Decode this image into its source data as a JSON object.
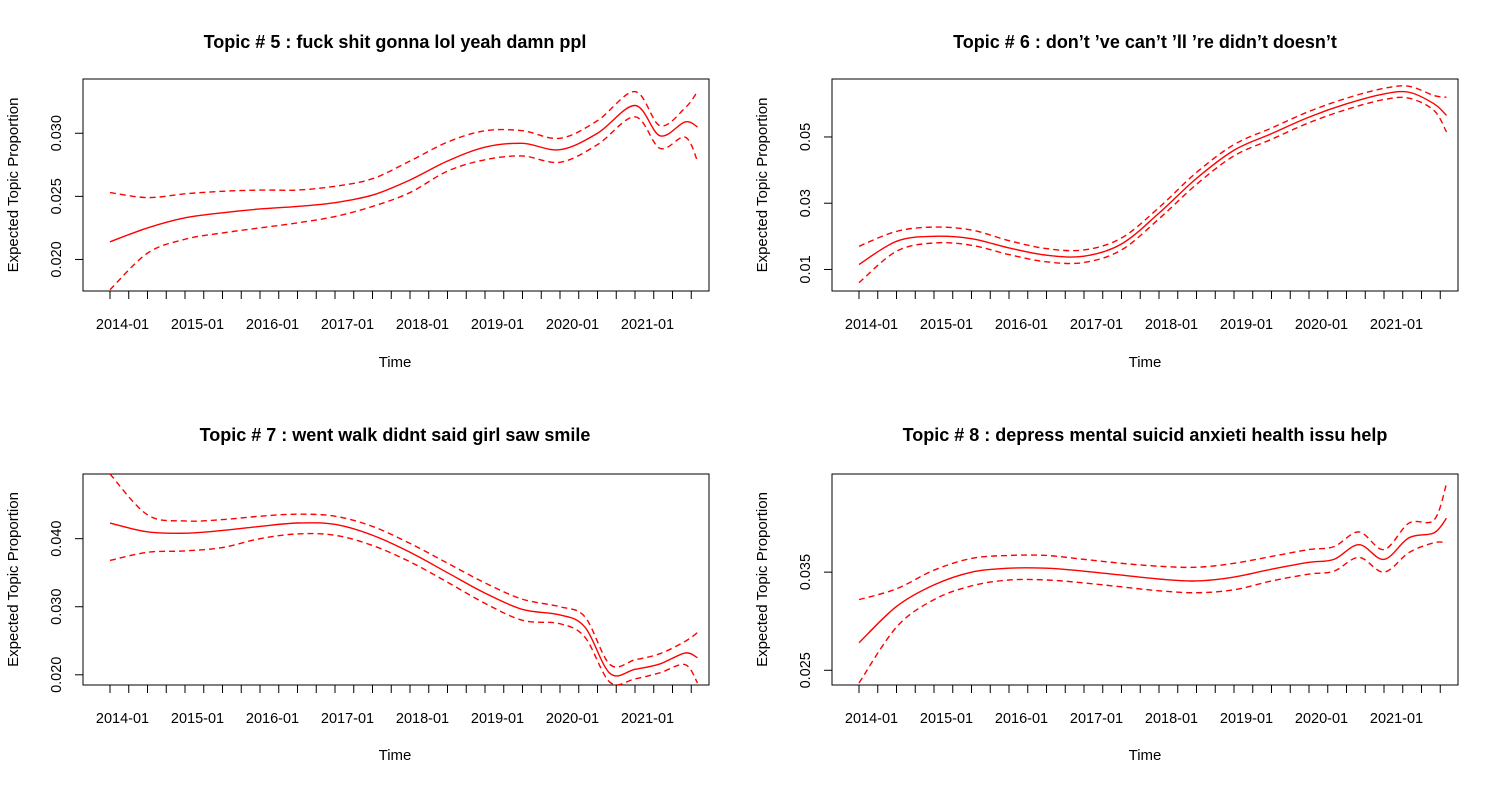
{
  "chart_data": [
    {
      "type": "line",
      "title": "Topic # 5 :  fuck shit gonna lol yeah damn ppl",
      "xlabel": "Time",
      "ylabel": "Expected Topic Proportion",
      "x_ticks": [
        "2014-01",
        "2015-01",
        "2016-01",
        "2017-01",
        "2018-01",
        "2019-01",
        "2020-01",
        "2021-01"
      ],
      "y_ticks": [
        "0.020",
        "0.025",
        "0.030"
      ],
      "ylim": [
        0.0175,
        0.0343
      ],
      "x": [
        "2013-11",
        "2014-05",
        "2014-11",
        "2015-05",
        "2015-11",
        "2016-05",
        "2016-11",
        "2017-05",
        "2017-11",
        "2018-05",
        "2018-11",
        "2019-05",
        "2019-11",
        "2020-05",
        "2020-11",
        "2021-03",
        "2021-07",
        "2021-09"
      ],
      "series": [
        {
          "values": [
            0.0214,
            0.0225,
            0.0233,
            0.0237,
            0.024,
            0.0242,
            0.0245,
            0.0251,
            0.0263,
            0.0278,
            0.0289,
            0.0292,
            0.0287,
            0.03,
            0.0322,
            0.0298,
            0.0309,
            0.0305
          ]
        },
        {
          "values": [
            0.0253,
            0.0249,
            0.0252,
            0.0254,
            0.0255,
            0.0255,
            0.0258,
            0.0264,
            0.0278,
            0.0293,
            0.0302,
            0.0302,
            0.0296,
            0.031,
            0.0333,
            0.0306,
            0.032,
            0.0333
          ]
        },
        {
          "values": [
            0.0176,
            0.0205,
            0.0216,
            0.0221,
            0.0225,
            0.0229,
            0.0234,
            0.0242,
            0.0253,
            0.027,
            0.0279,
            0.0282,
            0.0277,
            0.0291,
            0.0313,
            0.0288,
            0.0297,
            0.0278
          ]
        }
      ],
      "line_color": "#ff0000"
    },
    {
      "type": "line",
      "title": "Topic # 6 :  don’t ’ve can’t ’ll ’re didn’t doesn’t",
      "xlabel": "Time",
      "ylabel": "Expected Topic Proportion",
      "x_ticks": [
        "2014-01",
        "2015-01",
        "2016-01",
        "2017-01",
        "2018-01",
        "2019-01",
        "2020-01",
        "2021-01"
      ],
      "y_ticks": [
        "0.01",
        "0.03",
        "0.05"
      ],
      "ylim": [
        0.0035,
        0.0675
      ],
      "x": [
        "2013-11",
        "2014-05",
        "2014-11",
        "2015-05",
        "2015-11",
        "2016-05",
        "2016-11",
        "2017-05",
        "2017-11",
        "2018-05",
        "2018-11",
        "2019-05",
        "2019-11",
        "2020-05",
        "2020-11",
        "2021-03",
        "2021-07",
        "2021-09"
      ],
      "series": [
        {
          "values": [
            0.0115,
            0.0185,
            0.02,
            0.0193,
            0.0165,
            0.0143,
            0.014,
            0.0177,
            0.027,
            0.0375,
            0.046,
            0.051,
            0.056,
            0.06,
            0.063,
            0.0635,
            0.06,
            0.0565
          ]
        },
        {
          "values": [
            0.017,
            0.0215,
            0.0228,
            0.0219,
            0.0187,
            0.0163,
            0.0159,
            0.0195,
            0.0287,
            0.0393,
            0.0477,
            0.0527,
            0.0577,
            0.0617,
            0.0647,
            0.0653,
            0.0625,
            0.062
          ]
        },
        {
          "values": [
            0.006,
            0.0155,
            0.018,
            0.0173,
            0.0145,
            0.0123,
            0.0121,
            0.0159,
            0.0253,
            0.0357,
            0.0443,
            0.0493,
            0.0543,
            0.0583,
            0.0613,
            0.0617,
            0.058,
            0.0515
          ]
        }
      ],
      "line_color": "#ff0000"
    },
    {
      "type": "line",
      "title": "Topic # 7 :  went walk didnt said girl saw smile",
      "xlabel": "Time",
      "ylabel": "Expected Topic Proportion",
      "x_ticks": [
        "2014-01",
        "2015-01",
        "2016-01",
        "2017-01",
        "2018-01",
        "2019-01",
        "2020-01",
        "2021-01"
      ],
      "y_ticks": [
        "0.020",
        "0.030",
        "0.040"
      ],
      "ylim": [
        0.0185,
        0.0495
      ],
      "x": [
        "2013-11",
        "2014-05",
        "2014-11",
        "2015-05",
        "2015-11",
        "2016-05",
        "2016-11",
        "2017-05",
        "2017-11",
        "2018-05",
        "2018-11",
        "2019-05",
        "2019-11",
        "2020-03",
        "2020-07",
        "2020-11",
        "2021-03",
        "2021-07",
        "2021-09"
      ],
      "series": [
        {
          "values": [
            0.0423,
            0.041,
            0.0408,
            0.0412,
            0.0418,
            0.0423,
            0.0421,
            0.0405,
            0.038,
            0.035,
            0.032,
            0.0296,
            0.0288,
            0.027,
            0.0202,
            0.0208,
            0.0216,
            0.0232,
            0.0225
          ]
        },
        {
          "values": [
            0.0495,
            0.0435,
            0.0426,
            0.0428,
            0.0433,
            0.0436,
            0.0433,
            0.0418,
            0.0393,
            0.0364,
            0.0335,
            0.0311,
            0.03,
            0.0285,
            0.0215,
            0.0222,
            0.0231,
            0.0249,
            0.0262
          ]
        },
        {
          "values": [
            0.0368,
            0.038,
            0.0382,
            0.0387,
            0.04,
            0.0407,
            0.0405,
            0.039,
            0.0366,
            0.0336,
            0.0305,
            0.028,
            0.0275,
            0.0255,
            0.0189,
            0.0194,
            0.0203,
            0.0215,
            0.0188
          ]
        }
      ],
      "line_color": "#ff0000"
    },
    {
      "type": "line",
      "title": "Topic # 8 :  depress mental suicid anxieti health issu help",
      "xlabel": "Time",
      "ylabel": "Expected Topic Proportion",
      "x_ticks": [
        "2014-01",
        "2015-01",
        "2016-01",
        "2017-01",
        "2018-01",
        "2019-01",
        "2020-01",
        "2021-01"
      ],
      "y_ticks": [
        "0.025",
        "0.035"
      ],
      "ylim": [
        0.0235,
        0.045
      ],
      "x": [
        "2013-11",
        "2014-05",
        "2014-11",
        "2015-05",
        "2015-11",
        "2016-05",
        "2016-11",
        "2017-05",
        "2017-11",
        "2018-05",
        "2018-11",
        "2019-05",
        "2019-11",
        "2020-03",
        "2020-07",
        "2020-11",
        "2021-03",
        "2021-07",
        "2021-09"
      ],
      "series": [
        {
          "values": [
            0.0278,
            0.0315,
            0.0337,
            0.035,
            0.0354,
            0.0354,
            0.0351,
            0.0347,
            0.0343,
            0.0341,
            0.0345,
            0.0353,
            0.036,
            0.0363,
            0.0378,
            0.0363,
            0.0385,
            0.039,
            0.0405
          ]
        },
        {
          "values": [
            0.0322,
            0.0333,
            0.0352,
            0.0364,
            0.0367,
            0.0367,
            0.0363,
            0.0359,
            0.0356,
            0.0355,
            0.0359,
            0.0366,
            0.0373,
            0.0376,
            0.0391,
            0.0373,
            0.04,
            0.0403,
            0.044
          ]
        },
        {
          "values": [
            0.0237,
            0.0294,
            0.0322,
            0.0336,
            0.0342,
            0.0342,
            0.0339,
            0.0335,
            0.0331,
            0.0329,
            0.0332,
            0.0341,
            0.0348,
            0.0351,
            0.0365,
            0.035,
            0.037,
            0.038,
            0.038
          ]
        }
      ],
      "line_color": "#ff0000"
    }
  ]
}
